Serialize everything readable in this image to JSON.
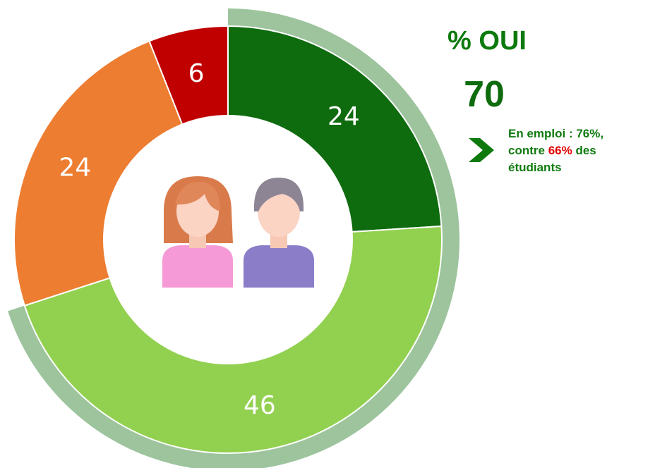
{
  "chart_data": {
    "type": "donut",
    "values": [
      24,
      46,
      24,
      6
    ],
    "colors": [
      "#0e6b0e",
      "#92d050",
      "#ed7d31",
      "#c00000"
    ],
    "kpi_label": "% OUI",
    "kpi_value": 70,
    "kpi_color": "#9dc49d",
    "note": [
      "En emploi : 76%, contre ",
      "66%",
      " des étudiants"
    ]
  }
}
